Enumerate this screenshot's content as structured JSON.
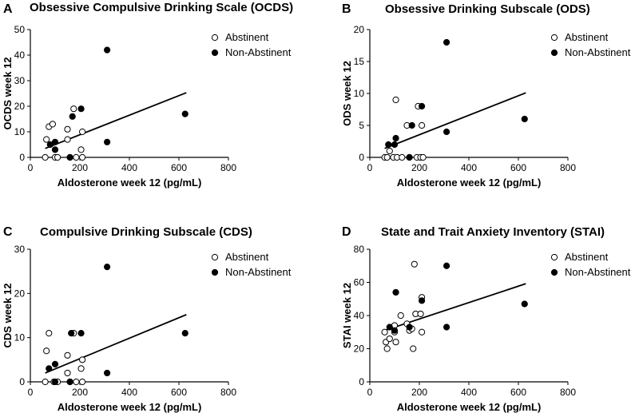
{
  "figure": {
    "description_labels": [
      "A",
      "B",
      "C",
      "D"
    ]
  },
  "legend": {
    "abstinent": "Abstinent",
    "non_abstinent": "Non-Abstinent"
  },
  "chart_data": [
    {
      "panel": "A",
      "type": "scatter",
      "title": "Obsessive Compulsive Drinking Scale (OCDS)",
      "xlabel": "Aldosterone week 12 (pg/mL)",
      "ylabel": "OCDS week 12",
      "xlim": [
        0,
        800
      ],
      "ylim": [
        0,
        50
      ],
      "xticks": [
        0,
        200,
        400,
        600,
        800
      ],
      "yticks": [
        0,
        10,
        20,
        30,
        40,
        50
      ],
      "legend_position": "top-right",
      "series": [
        {
          "name": "Abstinent",
          "marker": "open-circle",
          "points": [
            [
              60,
              0
            ],
            [
              65,
              7
            ],
            [
              75,
              12
            ],
            [
              90,
              13
            ],
            [
              100,
              0
            ],
            [
              110,
              0
            ],
            [
              150,
              11
            ],
            [
              150,
              7
            ],
            [
              160,
              0
            ],
            [
              175,
              19
            ],
            [
              185,
              0
            ],
            [
              205,
              3
            ],
            [
              210,
              10
            ],
            [
              210,
              0
            ]
          ]
        },
        {
          "name": "Non-Abstinent",
          "marker": "filled-circle",
          "points": [
            [
              80,
              5
            ],
            [
              100,
              3
            ],
            [
              100,
              6
            ],
            [
              160,
              0
            ],
            [
              170,
              16
            ],
            [
              205,
              19
            ],
            [
              310,
              42
            ],
            [
              310,
              6
            ],
            [
              625,
              17
            ]
          ]
        }
      ],
      "regression": {
        "x": [
          60,
          630
        ],
        "y": [
          3.5,
          25.3
        ]
      }
    },
    {
      "panel": "B",
      "type": "scatter",
      "title": "Obsessive Drinking Subscale (ODS)",
      "xlabel": "Aldosterone week 12 (pg/mL)",
      "ylabel": "ODS week 12",
      "xlim": [
        0,
        800
      ],
      "ylim": [
        0,
        20
      ],
      "xticks": [
        0,
        200,
        400,
        600,
        800
      ],
      "yticks": [
        0,
        5,
        10,
        15,
        20
      ],
      "legend_position": "top-right",
      "series": [
        {
          "name": "Abstinent",
          "marker": "open-circle",
          "points": [
            [
              60,
              0
            ],
            [
              70,
              0
            ],
            [
              80,
              1
            ],
            [
              95,
              0
            ],
            [
              105,
              9
            ],
            [
              110,
              0
            ],
            [
              130,
              0
            ],
            [
              150,
              5
            ],
            [
              160,
              0
            ],
            [
              190,
              0
            ],
            [
              195,
              8
            ],
            [
              205,
              0
            ],
            [
              210,
              5
            ],
            [
              215,
              0
            ]
          ]
        },
        {
          "name": "Non-Abstinent",
          "marker": "filled-circle",
          "points": [
            [
              75,
              2
            ],
            [
              100,
              2
            ],
            [
              105,
              3
            ],
            [
              160,
              0
            ],
            [
              170,
              5
            ],
            [
              210,
              8
            ],
            [
              310,
              18
            ],
            [
              310,
              4
            ],
            [
              625,
              6
            ]
          ]
        }
      ],
      "regression": {
        "x": [
          60,
          630
        ],
        "y": [
          1.4,
          10.1
        ]
      }
    },
    {
      "panel": "C",
      "type": "scatter",
      "title": "Compulsive Drinking Subscale (CDS)",
      "xlabel": "Aldosterone week 12 (pg/mL)",
      "ylabel": "CDS week 12",
      "xlim": [
        0,
        800
      ],
      "ylim": [
        0,
        30
      ],
      "xticks": [
        0,
        200,
        400,
        600,
        800
      ],
      "yticks": [
        0,
        10,
        20,
        30
      ],
      "legend_position": "top-right",
      "series": [
        {
          "name": "Abstinent",
          "marker": "open-circle",
          "points": [
            [
              60,
              0
            ],
            [
              65,
              7
            ],
            [
              75,
              11
            ],
            [
              95,
              0
            ],
            [
              110,
              0
            ],
            [
              150,
              6
            ],
            [
              150,
              2
            ],
            [
              160,
              0
            ],
            [
              175,
              11
            ],
            [
              185,
              0
            ],
            [
              205,
              3
            ],
            [
              210,
              5
            ],
            [
              210,
              0
            ]
          ]
        },
        {
          "name": "Non-Abstinent",
          "marker": "filled-circle",
          "points": [
            [
              75,
              3
            ],
            [
              100,
              4
            ],
            [
              100,
              0
            ],
            [
              160,
              0
            ],
            [
              165,
              11
            ],
            [
              205,
              11
            ],
            [
              310,
              26
            ],
            [
              310,
              2
            ],
            [
              625,
              11
            ]
          ]
        }
      ],
      "regression": {
        "x": [
          60,
          630
        ],
        "y": [
          2.0,
          15.2
        ]
      }
    },
    {
      "panel": "D",
      "type": "scatter",
      "title": "State and Trait Anxiety Inventory (STAI)",
      "xlabel": "Aldosterone week 12 (pg/mL)",
      "ylabel": "STAI week 12",
      "xlim": [
        0,
        800
      ],
      "ylim": [
        0,
        80
      ],
      "xticks": [
        0,
        200,
        400,
        600,
        800
      ],
      "yticks": [
        0,
        20,
        40,
        60,
        80
      ],
      "legend_position": "top-right",
      "series": [
        {
          "name": "Abstinent",
          "marker": "open-circle",
          "points": [
            [
              60,
              30
            ],
            [
              65,
              24
            ],
            [
              70,
              20
            ],
            [
              80,
              26
            ],
            [
              100,
              34
            ],
            [
              100,
              30
            ],
            [
              105,
              24
            ],
            [
              125,
              40
            ],
            [
              150,
              35
            ],
            [
              160,
              31
            ],
            [
              170,
              32
            ],
            [
              175,
              20
            ],
            [
              180,
              71
            ],
            [
              185,
              41
            ],
            [
              205,
              41
            ],
            [
              210,
              51
            ],
            [
              210,
              30
            ]
          ]
        },
        {
          "name": "Non-Abstinent",
          "marker": "filled-circle",
          "points": [
            [
              80,
              33
            ],
            [
              100,
              31
            ],
            [
              105,
              54
            ],
            [
              160,
              33
            ],
            [
              210,
              49
            ],
            [
              310,
              70
            ],
            [
              310,
              33
            ],
            [
              625,
              47
            ]
          ]
        }
      ],
      "regression": {
        "x": [
          60,
          630
        ],
        "y": [
          31.0,
          59.2
        ]
      }
    }
  ]
}
